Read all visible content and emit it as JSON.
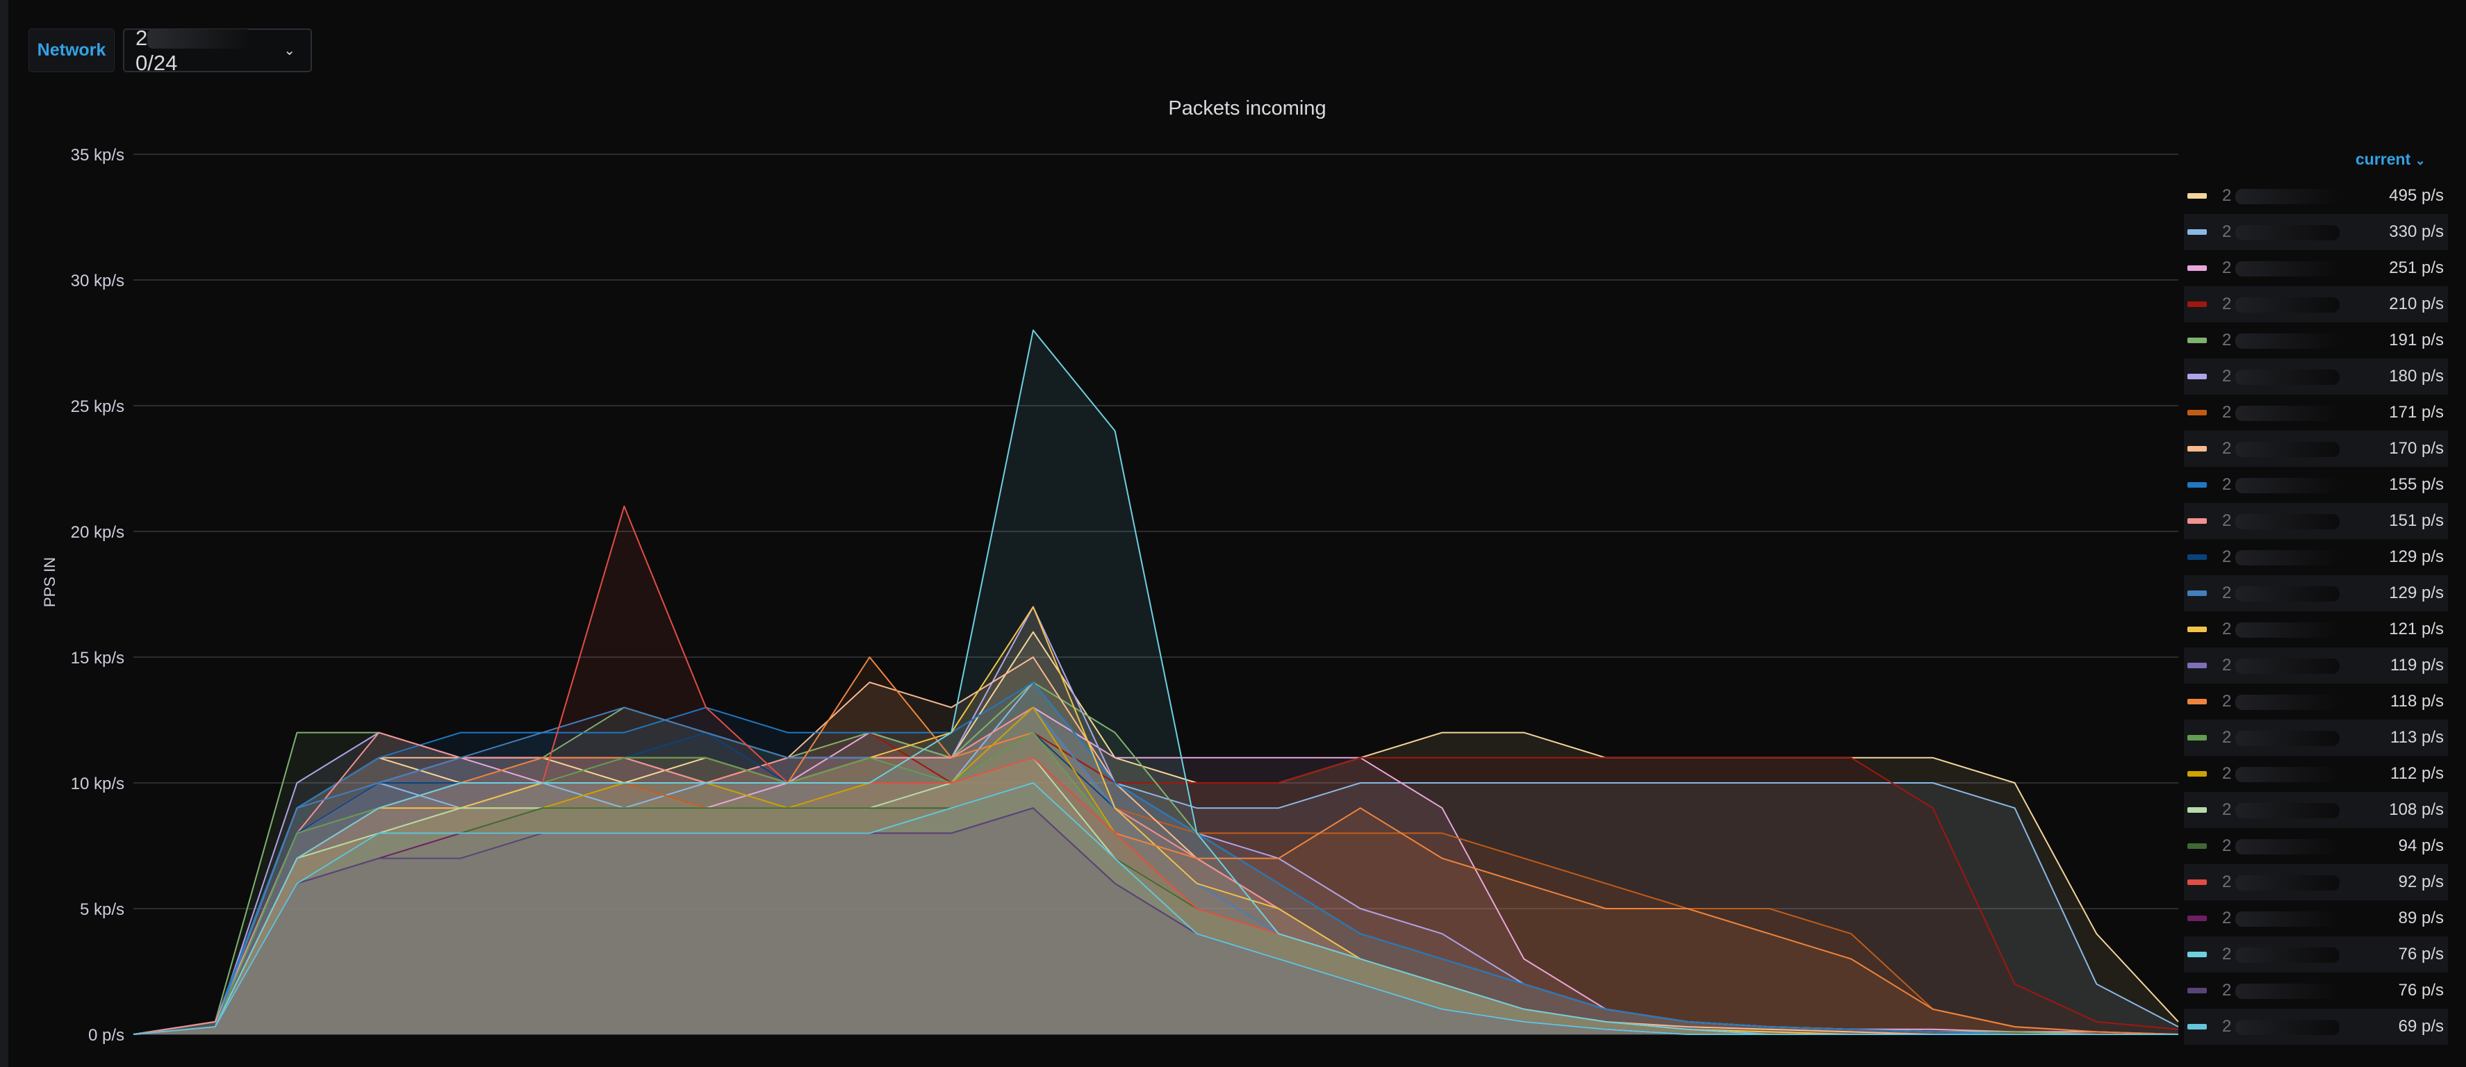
{
  "variables": {
    "network_label": "Network",
    "network_value_visible": "0/24",
    "network_value_prefix": "2"
  },
  "panel": {
    "title": "Packets incoming",
    "y_axis_label": "PPS IN",
    "legend_sort_label": "current"
  },
  "chart_data": {
    "type": "area",
    "title": "Packets incoming",
    "ylabel": "PPS IN",
    "xlabel": "",
    "ylim": [
      0,
      35
    ],
    "y_unit": "kp/s",
    "y_ticks": [
      "0 p/s",
      "5 kp/s",
      "10 kp/s",
      "15 kp/s",
      "20 kp/s",
      "25 kp/s",
      "30 kp/s",
      "35 kp/s"
    ],
    "grid": true,
    "legend_placement": "right",
    "x": [
      0,
      4,
      8,
      12,
      16,
      20,
      24,
      28,
      32,
      36,
      40,
      44,
      48,
      52,
      56,
      60,
      64,
      68,
      72,
      76,
      80,
      84,
      88,
      92,
      96,
      100
    ],
    "series": [
      {
        "name": "2",
        "current": "495 p/s",
        "color": "#f4d598",
        "values": [
          0,
          0.5,
          9,
          11,
          10,
          11,
          10,
          11,
          10,
          11,
          11,
          16,
          11,
          10,
          10,
          11,
          12,
          12,
          11,
          11,
          11,
          11,
          11,
          10,
          4,
          0.5
        ]
      },
      {
        "name": "2",
        "current": "330 p/s",
        "color": "#8ab8e6",
        "values": [
          0,
          0.5,
          8,
          10,
          9,
          10,
          9,
          10,
          10,
          10,
          10,
          14,
          10,
          9,
          9,
          10,
          10,
          10,
          10,
          10,
          10,
          10,
          10,
          9,
          2,
          0.3
        ]
      },
      {
        "name": "2",
        "current": "251 p/s",
        "color": "#e8a6dc",
        "values": [
          0,
          0.3,
          8,
          10,
          11,
          10,
          10,
          9,
          10,
          12,
          11,
          13,
          11,
          11,
          11,
          11,
          9,
          3,
          1,
          0.5,
          0.3,
          0.2,
          0.2,
          0.1,
          0.1,
          0
        ]
      },
      {
        "name": "2",
        "current": "210 p/s",
        "color": "#a0170f",
        "values": [
          0,
          0.3,
          7,
          9,
          10,
          11,
          11,
          10,
          11,
          12,
          10,
          12,
          10,
          10,
          10,
          11,
          11,
          11,
          11,
          11,
          11,
          11,
          9,
          2,
          0.5,
          0.2
        ]
      },
      {
        "name": "2",
        "current": "191 p/s",
        "color": "#7eb26d",
        "values": [
          0,
          0.5,
          12,
          12,
          11,
          11,
          13,
          12,
          11,
          12,
          11,
          14,
          12,
          8,
          6,
          4,
          3,
          2,
          1,
          0.5,
          0.3,
          0.2,
          0.1,
          0.1,
          0,
          0
        ]
      },
      {
        "name": "2",
        "current": "180 p/s",
        "color": "#b0a4e8",
        "values": [
          0,
          0.3,
          10,
          12,
          11,
          11,
          11,
          10,
          11,
          11,
          11,
          17,
          10,
          8,
          7,
          5,
          4,
          2,
          1,
          0.5,
          0.3,
          0.2,
          0.1,
          0,
          0,
          0
        ]
      },
      {
        "name": "2",
        "current": "171 p/s",
        "color": "#c15c17",
        "values": [
          0,
          0.3,
          8,
          9,
          9,
          9,
          10,
          9,
          9,
          10,
          10,
          12,
          9,
          8,
          8,
          8,
          8,
          7,
          6,
          5,
          5,
          4,
          1,
          0.3,
          0.1,
          0
        ]
      },
      {
        "name": "2",
        "current": "170 p/s",
        "color": "#f9ba8f",
        "values": [
          0,
          0.5,
          9,
          11,
          11,
          11,
          11,
          10,
          11,
          14,
          13,
          15,
          10,
          7,
          5,
          3,
          2,
          1,
          0.5,
          0.3,
          0.2,
          0.1,
          0,
          0,
          0,
          0
        ]
      },
      {
        "name": "2",
        "current": "155 p/s",
        "color": "#1f78c1",
        "values": [
          0,
          0.5,
          9,
          11,
          12,
          12,
          12,
          13,
          12,
          12,
          12,
          14,
          10,
          8,
          6,
          4,
          3,
          2,
          1,
          0.5,
          0.3,
          0.2,
          0.1,
          0,
          0,
          0
        ]
      },
      {
        "name": "2",
        "current": "151 p/s",
        "color": "#f29191",
        "values": [
          0,
          0.5,
          8,
          12,
          11,
          11,
          11,
          10,
          11,
          11,
          11,
          13,
          9,
          7,
          5,
          3,
          2,
          1,
          0.5,
          0.2,
          0,
          0,
          0,
          0,
          0,
          0
        ]
      },
      {
        "name": "2",
        "current": "129 p/s",
        "color": "#0a437c",
        "values": [
          0,
          0.3,
          8,
          10,
          10,
          11,
          11,
          12,
          10,
          10,
          10,
          12,
          9,
          6,
          5,
          3,
          2,
          1,
          0.5,
          0.2,
          0,
          0,
          0,
          0,
          0,
          0
        ]
      },
      {
        "name": "2",
        "current": "129 p/s",
        "color": "#447ebc",
        "values": [
          0,
          0.3,
          9,
          10,
          11,
          12,
          13,
          12,
          11,
          11,
          10,
          13,
          9,
          6,
          4,
          3,
          2,
          1,
          0.5,
          0.2,
          0,
          0,
          0,
          0,
          0,
          0
        ]
      },
      {
        "name": "2",
        "current": "121 p/s",
        "color": "#f4c24a",
        "values": [
          0,
          0.3,
          7,
          9,
          9,
          10,
          10,
          10,
          10,
          11,
          12,
          17,
          9,
          6,
          5,
          3,
          2,
          1,
          0.5,
          0.2,
          0.1,
          0,
          0,
          0,
          0,
          0
        ]
      },
      {
        "name": "2",
        "current": "119 p/s",
        "color": "#806eb7",
        "values": [
          0,
          0.3,
          8,
          9,
          10,
          10,
          10,
          10,
          10,
          10,
          10,
          12,
          8,
          5,
          4,
          3,
          2,
          1,
          0.5,
          0.2,
          0,
          0,
          0,
          0,
          0,
          0
        ]
      },
      {
        "name": "2",
        "current": "118 p/s",
        "color": "#ef843c",
        "values": [
          0,
          0.3,
          7,
          9,
          10,
          11,
          11,
          11,
          10,
          15,
          11,
          12,
          8,
          7,
          7,
          9,
          7,
          6,
          5,
          5,
          4,
          3,
          1,
          0.3,
          0.1,
          0
        ]
      },
      {
        "name": "2",
        "current": "113 p/s",
        "color": "#629e51",
        "values": [
          0,
          0.3,
          8,
          9,
          10,
          10,
          11,
          11,
          10,
          11,
          10,
          12,
          8,
          5,
          4,
          3,
          2,
          1,
          0.5,
          0.2,
          0,
          0,
          0,
          0,
          0,
          0
        ]
      },
      {
        "name": "2",
        "current": "112 p/s",
        "color": "#cca300",
        "values": [
          0,
          0.3,
          7,
          8,
          9,
          9,
          10,
          10,
          9,
          10,
          10,
          13,
          8,
          5,
          4,
          3,
          2,
          1,
          0.5,
          0.2,
          0,
          0,
          0,
          0,
          0,
          0
        ]
      },
      {
        "name": "2",
        "current": "108 p/s",
        "color": "#b7dbab",
        "values": [
          0,
          0.3,
          7,
          8,
          9,
          9,
          9,
          9,
          9,
          9,
          10,
          11,
          7,
          5,
          4,
          3,
          2,
          1,
          0.5,
          0.2,
          0,
          0,
          0,
          0,
          0,
          0
        ]
      },
      {
        "name": "2",
        "current": "94 p/s",
        "color": "#3f6833",
        "values": [
          0,
          0.3,
          6,
          8,
          8,
          9,
          9,
          9,
          9,
          9,
          9,
          10,
          7,
          5,
          4,
          3,
          2,
          1,
          0.5,
          0.2,
          0,
          0,
          0,
          0,
          0,
          0
        ]
      },
      {
        "name": "2",
        "current": "92 p/s",
        "color": "#e24d42",
        "values": [
          0,
          0.3,
          7,
          9,
          10,
          10,
          21,
          13,
          10,
          10,
          10,
          11,
          8,
          5,
          4,
          3,
          2,
          1,
          0.5,
          0.2,
          0,
          0,
          0,
          0,
          0,
          0
        ]
      },
      {
        "name": "2",
        "current": "89 p/s",
        "color": "#6d1f62",
        "values": [
          0,
          0.3,
          6,
          7,
          8,
          8,
          8,
          8,
          8,
          8,
          8,
          9,
          6,
          4,
          3,
          2,
          1,
          0.5,
          0.2,
          0,
          0,
          0,
          0,
          0,
          0,
          0
        ]
      },
      {
        "name": "2",
        "current": "76 p/s",
        "color": "#6ed0e0",
        "values": [
          0,
          0.3,
          7,
          9,
          10,
          10,
          10,
          10,
          10,
          10,
          12,
          28,
          24,
          8,
          4,
          3,
          2,
          1,
          0.5,
          0.2,
          0,
          0,
          0,
          0,
          0,
          0
        ]
      },
      {
        "name": "2",
        "current": "76 p/s",
        "color": "#584477",
        "values": [
          0,
          0.3,
          6,
          7,
          7,
          8,
          8,
          8,
          8,
          8,
          8,
          9,
          6,
          4,
          3,
          2,
          1,
          0.5,
          0.2,
          0,
          0,
          0,
          0,
          0,
          0,
          0
        ]
      },
      {
        "name": "2",
        "current": "69 p/s",
        "color": "#65c5db",
        "values": [
          0,
          0.3,
          6,
          8,
          8,
          8,
          8,
          8,
          8,
          8,
          9,
          10,
          7,
          4,
          3,
          2,
          1,
          0.5,
          0.2,
          0,
          0,
          0,
          0,
          0,
          0,
          0
        ]
      }
    ]
  }
}
